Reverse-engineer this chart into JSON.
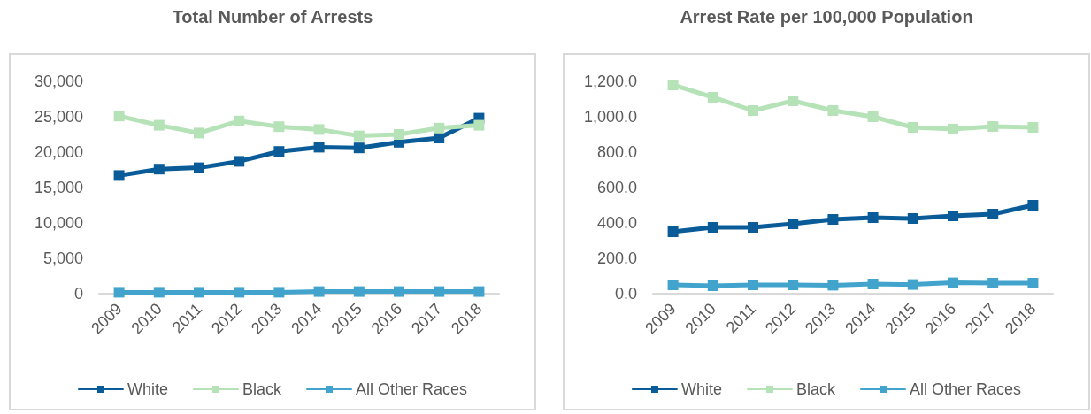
{
  "chart_data": [
    {
      "type": "line",
      "title": "Total Number of Arrests",
      "categories": [
        "2009",
        "2010",
        "2011",
        "2012",
        "2013",
        "2014",
        "2015",
        "2016",
        "2017",
        "2018"
      ],
      "ylim": [
        0,
        30000
      ],
      "yticks": [
        {
          "value": 0,
          "label": "0"
        },
        {
          "value": 5000,
          "label": "5,000"
        },
        {
          "value": 10000,
          "label": "10,000"
        },
        {
          "value": 15000,
          "label": "15,000"
        },
        {
          "value": 20000,
          "label": "20,000"
        },
        {
          "value": 25000,
          "label": "25,000"
        },
        {
          "value": 30000,
          "label": "30,000"
        }
      ],
      "grid": false,
      "legend": "bottom",
      "marker": "square",
      "line_style": "solid",
      "series": [
        {
          "name": "White",
          "color": "#0a5c99",
          "values": [
            16700,
            17600,
            17800,
            18700,
            20100,
            20700,
            20600,
            21400,
            22000,
            24800
          ]
        },
        {
          "name": "Black",
          "color": "#b6e2b8",
          "values": [
            25100,
            23800,
            22700,
            24400,
            23600,
            23200,
            22300,
            22500,
            23400,
            23800
          ]
        },
        {
          "name": "All Other Races",
          "color": "#42a4cc",
          "values": [
            200,
            200,
            200,
            200,
            200,
            300,
            300,
            300,
            300,
            300
          ]
        }
      ]
    },
    {
      "type": "line",
      "title": "Arrest Rate per 100,000 Population",
      "categories": [
        "2009",
        "2010",
        "2011",
        "2012",
        "2013",
        "2014",
        "2015",
        "2016",
        "2017",
        "2018"
      ],
      "ylim": [
        0,
        1200
      ],
      "yticks": [
        {
          "value": 0,
          "label": "0.0"
        },
        {
          "value": 200,
          "label": "200.0"
        },
        {
          "value": 400,
          "label": "400.0"
        },
        {
          "value": 600,
          "label": "600.0"
        },
        {
          "value": 800,
          "label": "800.0"
        },
        {
          "value": 1000,
          "label": "1,000.0"
        },
        {
          "value": 1200,
          "label": "1,200.0"
        }
      ],
      "grid": false,
      "legend": "bottom",
      "marker": "square",
      "line_style": "solid",
      "series": [
        {
          "name": "White",
          "color": "#0a5c99",
          "values": [
            350,
            375,
            375,
            395,
            420,
            430,
            425,
            440,
            450,
            500
          ]
        },
        {
          "name": "Black",
          "color": "#b6e2b8",
          "values": [
            1180,
            1110,
            1035,
            1090,
            1035,
            1000,
            940,
            930,
            945,
            940
          ]
        },
        {
          "name": "All Other Races",
          "color": "#42a4cc",
          "values": [
            50,
            45,
            50,
            50,
            48,
            55,
            52,
            62,
            60,
            60
          ]
        }
      ]
    }
  ]
}
